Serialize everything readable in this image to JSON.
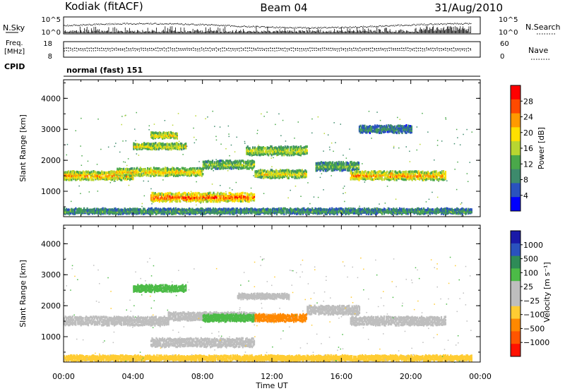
{
  "header": {
    "station": "Kodiak (fitACF)",
    "beam": "Beam 04",
    "date": "31/Aug/2010"
  },
  "noise_panel": {
    "left_label": "N.Sky",
    "right_label": "N.Search",
    "left_ticks": [
      "10^5",
      "10^0"
    ],
    "right_ticks": [
      "10^5",
      "10^0"
    ]
  },
  "freq_panel": {
    "left_label_1": "Freq.",
    "left_label_2": "[MHz]",
    "right_label": "Nave",
    "left_ticks": [
      "18",
      "8"
    ],
    "right_ticks": [
      "60",
      "0"
    ]
  },
  "cpid": {
    "label": "CPID",
    "value": "normal (fast) 151"
  },
  "colors": {
    "power_scale": [
      "#0000ff",
      "#2a52be",
      "#3d8a6c",
      "#4aa84a",
      "#b8d631",
      "#ffe000",
      "#ff9a00",
      "#ff4a00",
      "#ff0000"
    ],
    "velocity_scale": [
      "#ff0000",
      "#ff5500",
      "#ff9900",
      "#ffcc33",
      "#bebebe",
      "#bebebe",
      "#66cc44",
      "#2e8b57",
      "#2a52be",
      "#1a1aa8"
    ],
    "velocity_ground": "#bebebe"
  },
  "chart_data": [
    {
      "type": "heatmap",
      "title": "",
      "xlabel": "",
      "ylabel": "Slant Range [km]",
      "xlim": [
        "00:00",
        "24:00"
      ],
      "ylim": [
        180,
        4600
      ],
      "yticks": [
        "1000",
        "2000",
        "3000",
        "4000"
      ],
      "colorbar": {
        "label": "Power [dB]",
        "ticks": [
          "4",
          "8",
          "12",
          "16",
          "20",
          "24",
          "28"
        ],
        "range": [
          0,
          32
        ]
      },
      "echo_regions": [
        {
          "x0": 0.0,
          "x1": 4.0,
          "y": 1500,
          "w": 220,
          "value": 22
        },
        {
          "x0": 3.0,
          "x1": 8.0,
          "y": 1620,
          "w": 200,
          "value": 20
        },
        {
          "x0": 8.0,
          "x1": 11.0,
          "y": 1850,
          "w": 200,
          "value": 14
        },
        {
          "x0": 10.5,
          "x1": 14.0,
          "y": 2300,
          "w": 220,
          "value": 16
        },
        {
          "x0": 4.0,
          "x1": 7.0,
          "y": 2450,
          "w": 140,
          "value": 18
        },
        {
          "x0": 5.0,
          "x1": 6.5,
          "y": 2800,
          "w": 140,
          "value": 20
        },
        {
          "x0": 5.0,
          "x1": 11.0,
          "y": 800,
          "w": 220,
          "value": 26
        },
        {
          "x0": 11.0,
          "x1": 14.0,
          "y": 1550,
          "w": 200,
          "value": 18
        },
        {
          "x0": 14.5,
          "x1": 17.0,
          "y": 1800,
          "w": 220,
          "value": 12
        },
        {
          "x0": 16.5,
          "x1": 22.0,
          "y": 1500,
          "w": 220,
          "value": 22
        },
        {
          "x0": 17.0,
          "x1": 20.0,
          "y": 3000,
          "w": 180,
          "value": 8
        },
        {
          "x0": 0.0,
          "x1": 23.5,
          "y": 350,
          "w": 120,
          "value": 10
        }
      ]
    },
    {
      "type": "heatmap",
      "title": "",
      "xlabel": "Time UT",
      "ylabel": "Slant Range [km]",
      "xlim": [
        "00:00",
        "24:00"
      ],
      "ylim": [
        180,
        4600
      ],
      "xticks": [
        "00:00",
        "04:00",
        "08:00",
        "12:00",
        "16:00",
        "20:00",
        "00:00"
      ],
      "yticks": [
        "1000",
        "2000",
        "3000",
        "4000"
      ],
      "colorbar": {
        "label": "Velocity [m s⁻¹]",
        "ticks": [
          "1000",
          "500",
          "100",
          "25",
          "−25",
          "−100",
          "−500",
          "−1000"
        ]
      },
      "echo_regions": [
        {
          "x0": 0.0,
          "x1": 6.0,
          "y": 1500,
          "w": 220,
          "value": 0
        },
        {
          "x0": 6.0,
          "x1": 11.0,
          "y": 1650,
          "w": 200,
          "value": 0
        },
        {
          "x0": 5.0,
          "x1": 11.0,
          "y": 800,
          "w": 220,
          "value": 0
        },
        {
          "x0": 16.5,
          "x1": 22.0,
          "y": 1500,
          "w": 220,
          "value": 0
        },
        {
          "x0": 14.0,
          "x1": 17.0,
          "y": 1850,
          "w": 220,
          "value": 0
        },
        {
          "x0": 8.0,
          "x1": 11.0,
          "y": 1600,
          "w": 180,
          "value": 80
        },
        {
          "x0": 11.0,
          "x1": 14.0,
          "y": 1600,
          "w": 180,
          "value": -120
        },
        {
          "x0": 4.0,
          "x1": 7.0,
          "y": 2550,
          "w": 160,
          "value": 80
        },
        {
          "x0": 10.0,
          "x1": 13.0,
          "y": 2300,
          "w": 120,
          "value": 0
        },
        {
          "x0": 0.0,
          "x1": 23.5,
          "y": 300,
          "w": 120,
          "value": -60
        }
      ]
    }
  ]
}
